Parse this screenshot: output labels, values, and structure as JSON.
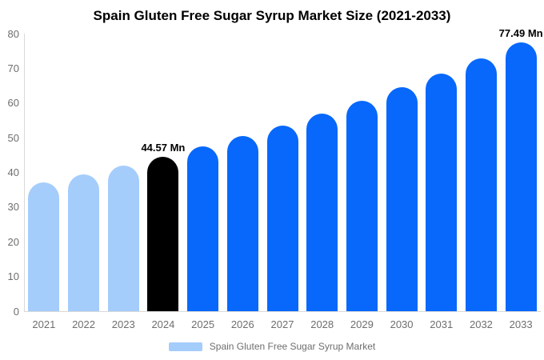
{
  "title": "Spain Gluten Free Sugar Syrup Market Size (2021-2033)",
  "legend": {
    "label": "Spain Gluten Free Sugar Syrup Market",
    "swatch_color": "#a5cdfb"
  },
  "colors": {
    "historical": "#a5cdfb",
    "base_year": "#000000",
    "forecast": "#0768fb",
    "axis_line": "#d9d9d9",
    "tick_label": "#6e6e6e",
    "annotation": "#000000"
  },
  "chart_data": {
    "type": "bar",
    "title": "Spain Gluten Free Sugar Syrup Market Size (2021-2033)",
    "xlabel": "",
    "ylabel": "",
    "unit": "Mn",
    "categories": [
      "2021",
      "2022",
      "2023",
      "2024",
      "2025",
      "2026",
      "2027",
      "2028",
      "2029",
      "2030",
      "2031",
      "2032",
      "2033"
    ],
    "values": [
      37.06,
      39.41,
      41.91,
      44.57,
      47.4,
      50.4,
      53.6,
      57.0,
      60.61,
      64.45,
      68.54,
      72.88,
      77.49
    ],
    "bar_roles": [
      "historical",
      "historical",
      "historical",
      "base_year",
      "forecast",
      "forecast",
      "forecast",
      "forecast",
      "forecast",
      "forecast",
      "forecast",
      "forecast",
      "forecast"
    ],
    "annotations": [
      {
        "category": "2024",
        "text": "44.57 Mn"
      },
      {
        "category": "2033",
        "text": "77.49 Mn"
      }
    ],
    "ylim": [
      0,
      80
    ],
    "yticks": [
      0,
      10,
      20,
      30,
      40,
      50,
      60,
      70,
      80
    ],
    "grid": false,
    "legend_position": "bottom"
  }
}
